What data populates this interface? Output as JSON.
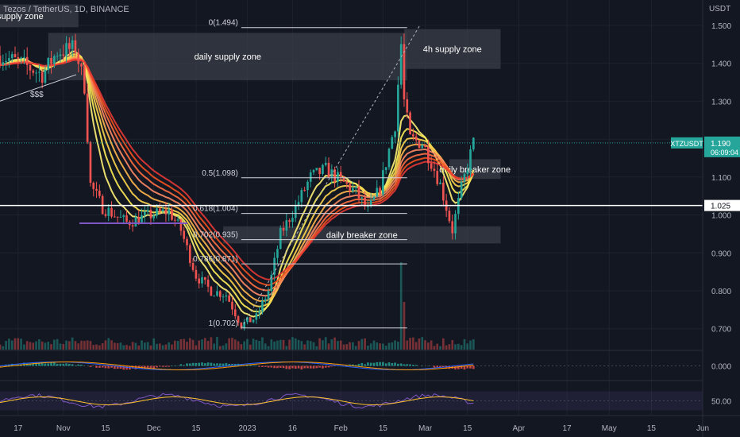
{
  "header": {
    "symbol_title": "Tezos / TetherUS, 1D, BINANCE",
    "axis_currency": "USDT"
  },
  "colors": {
    "background": "#131722",
    "up_candle": "#26a69a",
    "down_candle": "#ef5350",
    "zone_fill": "#3a3d47",
    "ribbon_red": "#e53935",
    "ribbon_yellow": "#ffeb3b",
    "price_tag": "#26a69a"
  },
  "chart_data": {
    "type": "candlestick",
    "price_axis": {
      "ylim": [
        0.645,
        1.55
      ],
      "ticks": [
        1.5,
        1.4,
        1.3,
        1.2,
        1.1,
        1.0,
        0.9,
        0.8,
        0.7
      ],
      "tick_labels": [
        "1.500",
        "1.400",
        "1.300",
        "1.200",
        "1.100",
        "1.000",
        "0.900",
        "0.800",
        "0.700"
      ]
    },
    "time_axis": {
      "start": "2022-10-11",
      "end": "2023-06-01",
      "tick_labels": [
        {
          "label": "17",
          "date": "2022-10-17"
        },
        {
          "label": "Nov",
          "date": "2022-11-01"
        },
        {
          "label": "15",
          "date": "2022-11-15"
        },
        {
          "label": "Dec",
          "date": "2022-12-01"
        },
        {
          "label": "15",
          "date": "2022-12-15"
        },
        {
          "label": "2023",
          "date": "2023-01-01"
        },
        {
          "label": "16",
          "date": "2023-01-16"
        },
        {
          "label": "Feb",
          "date": "2023-02-01"
        },
        {
          "label": "15",
          "date": "2023-02-15"
        },
        {
          "label": "Mar",
          "date": "2023-03-01"
        },
        {
          "label": "15",
          "date": "2023-03-15"
        },
        {
          "label": "Apr",
          "date": "2023-04-01"
        },
        {
          "label": "17",
          "date": "2023-04-17"
        },
        {
          "label": "May",
          "date": "2023-05-01"
        },
        {
          "label": "15",
          "date": "2023-05-15"
        },
        {
          "label": "Jun",
          "date": "2023-06-01"
        }
      ]
    },
    "price_path": [
      [
        "2022-10-11",
        1.42
      ],
      [
        "2022-10-18",
        1.4
      ],
      [
        "2022-10-25",
        1.37
      ],
      [
        "2022-10-30",
        1.43
      ],
      [
        "2022-11-05",
        1.44
      ],
      [
        "2022-11-08",
        1.34
      ],
      [
        "2022-11-10",
        1.08
      ],
      [
        "2022-11-14",
        1.02
      ],
      [
        "2022-11-22",
        0.98
      ],
      [
        "2022-11-30",
        1.0
      ],
      [
        "2022-12-06",
        1.01
      ],
      [
        "2022-12-10",
        0.96
      ],
      [
        "2022-12-15",
        0.84
      ],
      [
        "2022-12-20",
        0.8
      ],
      [
        "2022-12-25",
        0.79
      ],
      [
        "2022-12-30",
        0.71
      ],
      [
        "2023-01-04",
        0.73
      ],
      [
        "2023-01-08",
        0.8
      ],
      [
        "2023-01-12",
        0.95
      ],
      [
        "2023-01-17",
        1.02
      ],
      [
        "2023-01-22",
        1.1
      ],
      [
        "2023-01-27",
        1.12
      ],
      [
        "2023-02-01",
        1.09
      ],
      [
        "2023-02-06",
        1.06
      ],
      [
        "2023-02-10",
        1.01
      ],
      [
        "2023-02-14",
        1.07
      ],
      [
        "2023-02-19",
        1.24
      ],
      [
        "2023-02-21",
        1.45
      ],
      [
        "2023-02-22",
        1.3
      ],
      [
        "2023-02-24",
        1.2
      ],
      [
        "2023-02-28",
        1.19
      ],
      [
        "2023-03-03",
        1.14
      ],
      [
        "2023-03-06",
        1.08
      ],
      [
        "2023-03-10",
        0.96
      ],
      [
        "2023-03-13",
        1.07
      ],
      [
        "2023-03-17",
        1.19
      ]
    ],
    "last_price": {
      "label": "XTZUSDT",
      "value": "1.190",
      "countdown": "06:09:04"
    },
    "horizontal_line": {
      "value": 1.025,
      "label": "1.025"
    },
    "zones": [
      {
        "label": "daily supply zone",
        "from": "2022-10-27",
        "to": "2023-02-23",
        "top": 1.48,
        "bottom": 1.355
      },
      {
        "label": "4h supply zone",
        "from": "2023-02-22",
        "to": "2023-03-26",
        "top": 1.49,
        "bottom": 1.385
      },
      {
        "label": "daily breaker zone",
        "from": "2023-03-09",
        "to": "2023-03-26",
        "top": 1.147,
        "bottom": 1.095
      },
      {
        "label": "daily breaker zone",
        "from": "2022-12-24",
        "to": "2023-03-26",
        "top": 0.97,
        "bottom": 0.925
      },
      {
        "label": "supply zone",
        "from": "2022-10-11",
        "to": "2022-11-06",
        "top": 1.555,
        "bottom": 1.495
      }
    ],
    "fibonacci": {
      "from": "2022-12-30",
      "to": "2023-02-23",
      "levels": [
        {
          "label": "0(1.494)",
          "value": 1.494
        },
        {
          "label": "0.5(1.098)",
          "value": 1.098
        },
        {
          "label": "0.618(1.004)",
          "value": 1.004
        },
        {
          "label": "0.702(0.935)",
          "value": 0.935
        },
        {
          "label": "0.786(0.871)",
          "value": 0.871
        },
        {
          "label": "1(0.702)",
          "value": 0.702
        }
      ]
    },
    "annotations": [
      {
        "label": "$$$",
        "date": "2022-10-21",
        "value": 1.32
      }
    ],
    "indicators": [
      {
        "name": "oscillator",
        "level_label": "0.000",
        "level": 0
      },
      {
        "name": "rsi",
        "level_label": "50.00",
        "level": 50
      }
    ]
  }
}
